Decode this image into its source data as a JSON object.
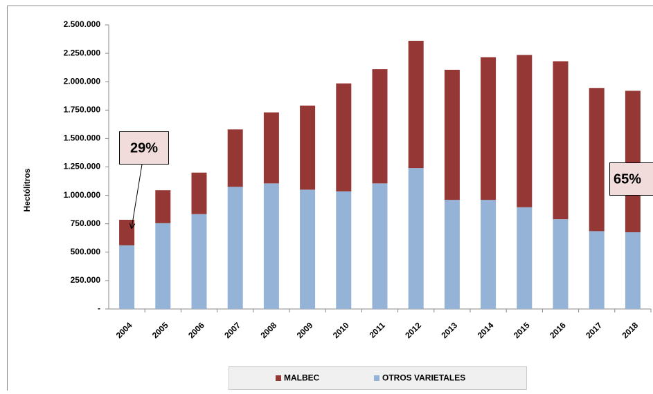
{
  "chart_data": {
    "type": "stacked_bar",
    "y_label": "Hectólitros",
    "categories": [
      "2004",
      "2005",
      "2006",
      "2007",
      "2008",
      "2009",
      "2010",
      "2011",
      "2012",
      "2013",
      "2014",
      "2015",
      "2016",
      "2017",
      "2018"
    ],
    "series": [
      {
        "name": "MALBEC",
        "color": "#953735",
        "values": [
          225000,
          290000,
          365000,
          505000,
          625000,
          740000,
          950000,
          1005000,
          1120000,
          1145000,
          1255000,
          1340000,
          1390000,
          1260000,
          1245000
        ]
      },
      {
        "name": "OTROS VARIETALES",
        "color": "#95b3d7",
        "values": [
          560000,
          755000,
          835000,
          1075000,
          1105000,
          1050000,
          1035000,
          1105000,
          1240000,
          960000,
          960000,
          895000,
          790000,
          685000,
          675000
        ]
      }
    ],
    "ylim": [
      0,
      2500000
    ],
    "yticks": [
      {
        "value": 0,
        "label": "-"
      },
      {
        "value": 250000,
        "label": "250.000"
      },
      {
        "value": 500000,
        "label": "500.000"
      },
      {
        "value": 750000,
        "label": "750.000"
      },
      {
        "value": 1000000,
        "label": "1.000.000"
      },
      {
        "value": 1250000,
        "label": "1.250.000"
      },
      {
        "value": 1500000,
        "label": "1.500.000"
      },
      {
        "value": 1750000,
        "label": "1.750.000"
      },
      {
        "value": 2000000,
        "label": "2.000.000"
      },
      {
        "value": 2250000,
        "label": "2.250.000"
      },
      {
        "value": 2500000,
        "label": "2.500.000"
      }
    ],
    "grid": false,
    "legend": "bottom",
    "annotations": [
      "29%",
      "65%"
    ]
  }
}
